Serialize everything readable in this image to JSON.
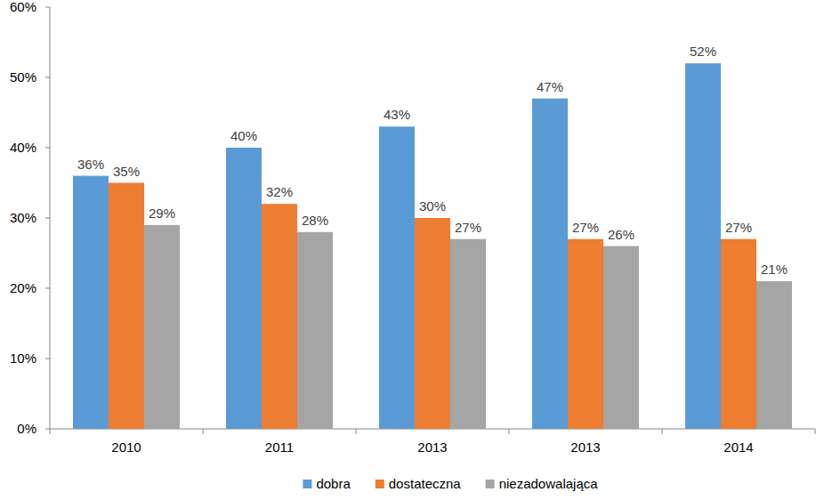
{
  "chart_data": {
    "type": "bar",
    "categories": [
      "2010",
      "2011",
      "2013",
      "2013",
      "2014"
    ],
    "series": [
      {
        "name": "dobra",
        "color": "#5b9bd5",
        "values": [
          36,
          40,
          43,
          47,
          52
        ],
        "value_labels": [
          "36%",
          "40%",
          "43%",
          "47%",
          "52%"
        ]
      },
      {
        "name": "dostateczna",
        "color": "#ed7d31",
        "values": [
          35,
          32,
          30,
          27,
          27
        ],
        "value_labels": [
          "35%",
          "32%",
          "30%",
          "27%",
          "27%"
        ]
      },
      {
        "name": "niezadowalająca",
        "color": "#a5a5a5",
        "values": [
          29,
          28,
          27,
          26,
          21
        ],
        "value_labels": [
          "29%",
          "28%",
          "27%",
          "26%",
          "21%"
        ]
      }
    ],
    "ylim": [
      0,
      60
    ],
    "yticks": [
      {
        "value": 0,
        "label": "0%"
      },
      {
        "value": 10,
        "label": "10%"
      },
      {
        "value": 20,
        "label": "20%"
      },
      {
        "value": 30,
        "label": "30%"
      },
      {
        "value": 40,
        "label": "40%"
      },
      {
        "value": 50,
        "label": "50%"
      },
      {
        "value": 60,
        "label": "60%"
      }
    ],
    "grid": false,
    "legend": "bottom",
    "data_labels": true
  }
}
